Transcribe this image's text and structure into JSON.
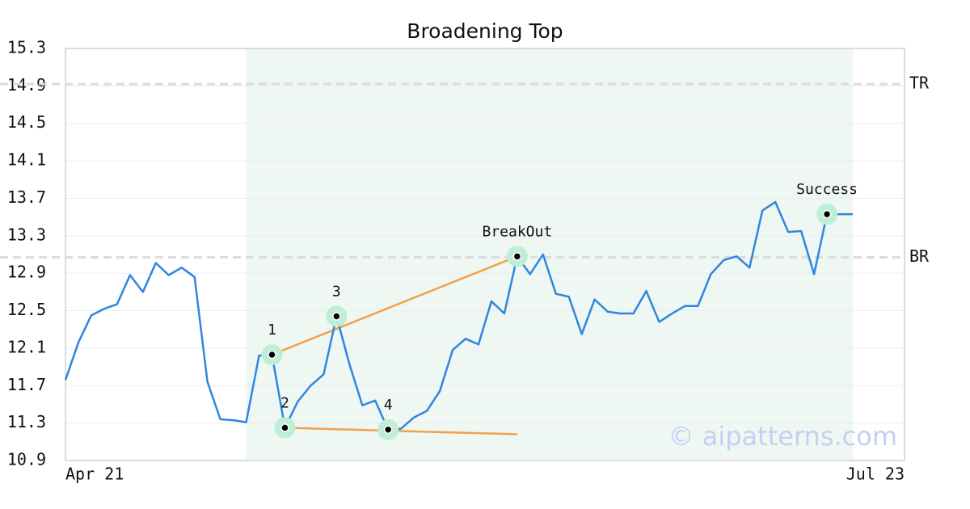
{
  "chart_data": {
    "type": "line",
    "title": "Broadening Top",
    "categories": [
      "Apr 21",
      null,
      null,
      null,
      null,
      null,
      null,
      null,
      null,
      null,
      null,
      null,
      null,
      null,
      null,
      null,
      null,
      null,
      null,
      null,
      null,
      null,
      null,
      null,
      null,
      null,
      null,
      null,
      null,
      null,
      null,
      null,
      null,
      null,
      null,
      null,
      null,
      null,
      null,
      null,
      null,
      null,
      null,
      null,
      null,
      null,
      null,
      null,
      null,
      null,
      null,
      null,
      null,
      null,
      null,
      null,
      null,
      null,
      null,
      null,
      null,
      "Jul 23"
    ],
    "values": [
      11.76,
      12.16,
      12.45,
      12.52,
      12.57,
      12.88,
      12.7,
      13.01,
      12.88,
      12.96,
      12.86,
      11.74,
      11.34,
      11.33,
      11.31,
      12.02,
      12.03,
      11.25,
      11.53,
      11.7,
      11.82,
      12.44,
      11.93,
      11.49,
      11.54,
      11.23,
      11.24,
      11.36,
      11.43,
      11.64,
      12.08,
      12.2,
      12.14,
      12.6,
      12.47,
      13.08,
      12.89,
      13.1,
      12.68,
      12.65,
      12.25,
      12.62,
      12.49,
      12.47,
      12.47,
      12.71,
      12.38,
      12.47,
      12.55,
      12.55,
      12.89,
      13.04,
      13.08,
      12.96,
      13.57,
      13.66,
      13.34,
      13.35,
      12.89,
      13.53,
      13.53,
      13.53
    ],
    "color": "#2f86e0",
    "ylim": [
      10.9,
      15.3
    ],
    "yticks": [
      10.9,
      11.3,
      11.7,
      12.1,
      12.5,
      12.9,
      13.3,
      13.7,
      14.1,
      14.5,
      14.9,
      15.3
    ],
    "grid": true,
    "pattern_range": {
      "from": 14,
      "to": 61,
      "color": "#eef7f2"
    },
    "reference_lines": [
      {
        "label": "TR",
        "value": 14.92
      },
      {
        "label": "BR",
        "value": 13.07
      }
    ],
    "trendlines": [
      {
        "x": [
          16,
          35
        ],
        "y": [
          12.03,
          13.08
        ],
        "color": "#f4a04a"
      },
      {
        "x": [
          17,
          35
        ],
        "y": [
          11.25,
          11.18
        ],
        "color": "#f4a04a"
      }
    ],
    "annotations": [
      {
        "label": "1",
        "index": 16
      },
      {
        "label": "2",
        "index": 17
      },
      {
        "label": "3",
        "index": 21
      },
      {
        "label": "4",
        "index": 25
      },
      {
        "label": "BreakOut",
        "index": 35
      },
      {
        "label": "Success",
        "index": 59
      }
    ],
    "watermark": "© aipatterns.com"
  }
}
